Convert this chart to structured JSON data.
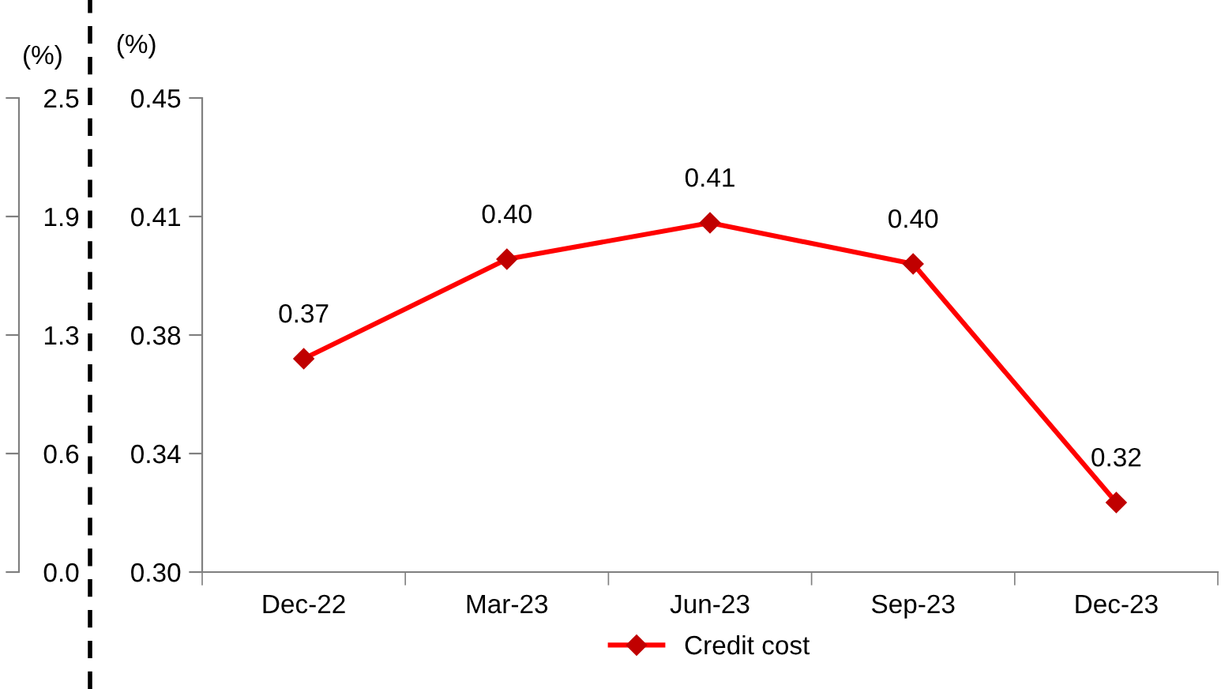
{
  "chart_data": [
    {
      "type": "other",
      "ylabel": "(%)",
      "annotations": [
        "2.5",
        "1.9",
        "1.3",
        "0.6",
        "0.0"
      ]
    },
    {
      "type": "line",
      "ylabel": "(%)",
      "categories": [
        "Dec-22",
        "Mar-23",
        "Jun-23",
        "Sep-23",
        "Dec-23"
      ],
      "series": [
        {
          "name": "Credit cost",
          "color": "#ff0000",
          "values": [
            0.3675,
            0.399,
            0.4105,
            0.3975,
            0.322
          ],
          "value_labels": [
            "0.37",
            "0.40",
            "0.41",
            "0.40",
            "0.32"
          ]
        }
      ],
      "ylim": [
        0.3,
        0.45
      ],
      "yticks": [
        {
          "value": 0.3,
          "label": "0.30"
        },
        {
          "value": 0.3375,
          "label": "0.34"
        },
        {
          "value": 0.375,
          "label": "0.38"
        },
        {
          "value": 0.4125,
          "label": "0.41"
        },
        {
          "value": 0.45,
          "label": "0.45"
        }
      ],
      "marker": "diamond",
      "line_style": "solid",
      "legend": "bottom",
      "grid": false
    }
  ]
}
